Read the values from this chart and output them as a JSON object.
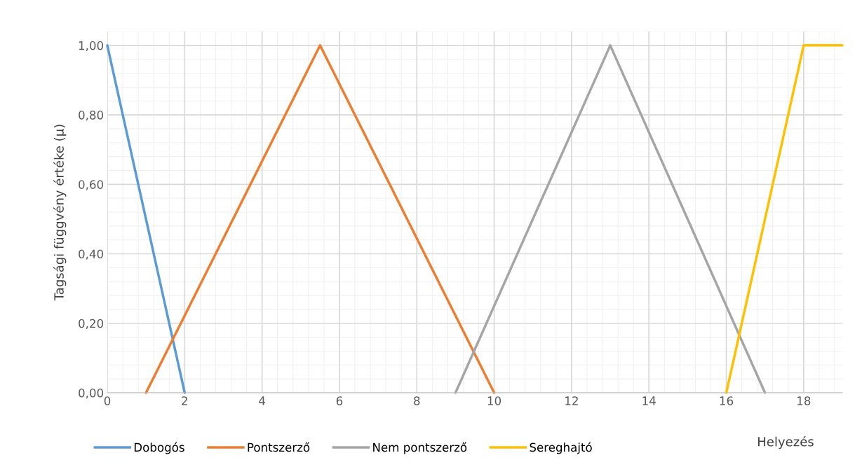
{
  "chart_data": {
    "type": "line",
    "xlabel": "Helyezés",
    "ylabel": "Tagsági függvény értéke (µ)",
    "xlim": [
      0,
      19
    ],
    "xticks": [
      0,
      2,
      4,
      6,
      8,
      10,
      12,
      14,
      16,
      18
    ],
    "ylim": [
      0,
      1.04
    ],
    "yticks": [
      {
        "value": 0,
        "label": "0,00"
      },
      {
        "value": 0.2,
        "label": "0,20"
      },
      {
        "value": 0.4,
        "label": "0,40"
      },
      {
        "value": 0.6,
        "label": "0,60"
      },
      {
        "value": 0.8,
        "label": "0,80"
      },
      {
        "value": 1,
        "label": "1,00"
      }
    ],
    "grid": true,
    "legend": "bottom",
    "marker": "none",
    "line_style": "solid",
    "series": [
      {
        "name": "Dobogós",
        "color": "#5b9bd5",
        "x": [
          0,
          2
        ],
        "values": [
          1,
          0
        ]
      },
      {
        "name": "Pontszerző",
        "color": "#ed7d31",
        "x": [
          1,
          5.5,
          10
        ],
        "values": [
          0,
          1,
          0
        ]
      },
      {
        "name": "Nem pontszerző",
        "color": "#a5a5a5",
        "x": [
          9,
          13,
          17
        ],
        "values": [
          0,
          1,
          0
        ]
      },
      {
        "name": "Sereghajtó",
        "color": "#ffc000",
        "x": [
          16,
          18,
          19
        ],
        "values": [
          0,
          1,
          1
        ]
      }
    ]
  }
}
